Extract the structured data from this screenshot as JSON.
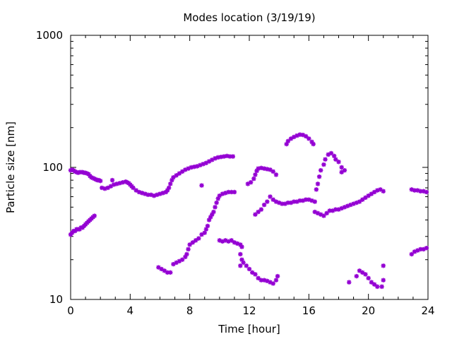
{
  "chart_data": {
    "type": "scatter",
    "title": "Modes location (3/19/19)",
    "xlabel": "Time [hour]",
    "ylabel": "Particle size [nm]",
    "xlim": [
      0,
      24
    ],
    "ylim": [
      10,
      1000
    ],
    "yscale": "log",
    "grid": false,
    "legend": "none",
    "x_ticks": [
      0,
      4,
      8,
      12,
      16,
      20,
      24
    ],
    "x_tick_labels": [
      "0",
      "4",
      "8",
      "12",
      "16",
      "20",
      "24"
    ],
    "y_ticks": [
      10,
      100,
      1000
    ],
    "y_tick_labels": [
      "10",
      "100",
      "1000"
    ],
    "marker": "star",
    "color": "#9400d3",
    "series": [
      {
        "points": [
          [
            0.0,
            95
          ],
          [
            0.1,
            96
          ],
          [
            0.2,
            95
          ],
          [
            0.3,
            93
          ],
          [
            0.4,
            92
          ],
          [
            0.5,
            91
          ],
          [
            0.6,
            92
          ],
          [
            0.7,
            92
          ],
          [
            0.8,
            92
          ],
          [
            0.9,
            91
          ],
          [
            1.0,
            91
          ],
          [
            1.1,
            90
          ],
          [
            1.2,
            89
          ],
          [
            1.3,
            86
          ],
          [
            1.4,
            84
          ],
          [
            1.5,
            83
          ],
          [
            1.6,
            82
          ],
          [
            1.7,
            81
          ],
          [
            1.8,
            80
          ],
          [
            1.9,
            80
          ],
          [
            2.0,
            79
          ],
          [
            2.1,
            70
          ],
          [
            2.3,
            69
          ],
          [
            2.5,
            70
          ],
          [
            2.7,
            72
          ],
          [
            2.9,
            74
          ],
          [
            3.1,
            75
          ],
          [
            3.3,
            76
          ],
          [
            3.5,
            77
          ],
          [
            3.7,
            78
          ],
          [
            3.8,
            77
          ],
          [
            3.9,
            76
          ],
          [
            4.0,
            74
          ],
          [
            4.1,
            72
          ],
          [
            4.2,
            70
          ],
          [
            4.4,
            67
          ],
          [
            4.6,
            65
          ],
          [
            4.8,
            64
          ],
          [
            5.0,
            63
          ],
          [
            5.2,
            62
          ],
          [
            5.4,
            62
          ],
          [
            5.6,
            61
          ],
          [
            5.8,
            62
          ],
          [
            6.0,
            63
          ],
          [
            6.2,
            64
          ],
          [
            6.4,
            65
          ],
          [
            6.5,
            67
          ],
          [
            6.6,
            70
          ],
          [
            6.7,
            75
          ],
          [
            6.8,
            80
          ],
          [
            6.9,
            84
          ],
          [
            7.1,
            87
          ],
          [
            7.3,
            90
          ],
          [
            7.5,
            93
          ],
          [
            7.7,
            96
          ],
          [
            7.9,
            98
          ],
          [
            8.1,
            100
          ],
          [
            8.3,
            101
          ],
          [
            8.5,
            102
          ],
          [
            8.7,
            104
          ],
          [
            8.9,
            106
          ],
          [
            9.1,
            108
          ],
          [
            9.3,
            111
          ],
          [
            9.5,
            114
          ],
          [
            9.7,
            117
          ],
          [
            9.9,
            119
          ],
          [
            10.1,
            120
          ],
          [
            10.3,
            121
          ],
          [
            10.5,
            122
          ],
          [
            10.7,
            121
          ],
          [
            10.9,
            121
          ],
          [
            2.8,
            80
          ],
          [
            11.9,
            75
          ],
          [
            12.1,
            77
          ],
          [
            12.3,
            82
          ],
          [
            12.4,
            88
          ],
          [
            12.5,
            94
          ],
          [
            12.6,
            98
          ],
          [
            12.8,
            99
          ],
          [
            13.0,
            98
          ],
          [
            13.2,
            97
          ],
          [
            13.4,
            96
          ],
          [
            13.6,
            93
          ],
          [
            13.8,
            88
          ]
        ]
      },
      {
        "points": [
          [
            0.0,
            31
          ],
          [
            0.1,
            32
          ],
          [
            0.2,
            33
          ],
          [
            0.3,
            33
          ],
          [
            0.4,
            34
          ],
          [
            0.5,
            34
          ],
          [
            0.6,
            34
          ],
          [
            0.7,
            35
          ],
          [
            0.8,
            35
          ],
          [
            0.9,
            36
          ],
          [
            1.0,
            37
          ],
          [
            1.1,
            38
          ],
          [
            1.2,
            39
          ],
          [
            1.3,
            40
          ],
          [
            1.4,
            41
          ],
          [
            1.5,
            42
          ],
          [
            1.6,
            43
          ],
          [
            5.9,
            17.5
          ],
          [
            6.1,
            17
          ],
          [
            6.3,
            16.5
          ],
          [
            6.5,
            16
          ],
          [
            6.7,
            16
          ],
          [
            6.9,
            18.5
          ],
          [
            7.1,
            19
          ],
          [
            7.3,
            19.5
          ],
          [
            7.5,
            20
          ],
          [
            7.7,
            21
          ],
          [
            7.8,
            22
          ],
          [
            7.9,
            24
          ],
          [
            8.0,
            26
          ],
          [
            8.2,
            27
          ],
          [
            8.4,
            28
          ],
          [
            8.6,
            29
          ],
          [
            8.8,
            31
          ],
          [
            9.0,
            32
          ],
          [
            9.1,
            34
          ],
          [
            9.2,
            36
          ],
          [
            9.3,
            40
          ],
          [
            9.4,
            42
          ],
          [
            9.5,
            44
          ],
          [
            9.6,
            46
          ],
          [
            9.7,
            50
          ],
          [
            9.8,
            54
          ],
          [
            9.9,
            58
          ],
          [
            10.0,
            61
          ],
          [
            10.2,
            63
          ],
          [
            10.4,
            64
          ],
          [
            10.6,
            65
          ],
          [
            10.8,
            65
          ],
          [
            11.0,
            65
          ],
          [
            8.8,
            73
          ],
          [
            10.0,
            28
          ],
          [
            10.2,
            27.5
          ],
          [
            10.4,
            28
          ],
          [
            10.6,
            27.5
          ],
          [
            10.8,
            28
          ],
          [
            11.0,
            27
          ],
          [
            11.2,
            26.5
          ],
          [
            11.4,
            26
          ],
          [
            11.5,
            25
          ],
          [
            11.4,
            22
          ],
          [
            11.5,
            20
          ],
          [
            11.6,
            19
          ],
          [
            11.8,
            18
          ],
          [
            12.0,
            17
          ],
          [
            12.2,
            16
          ],
          [
            12.4,
            15.5
          ],
          [
            12.6,
            14.5
          ],
          [
            12.8,
            14
          ],
          [
            13.0,
            14
          ],
          [
            13.2,
            13.8
          ],
          [
            13.4,
            13.5
          ],
          [
            13.6,
            13.2
          ],
          [
            13.8,
            14
          ],
          [
            13.9,
            15
          ],
          [
            11.4,
            18
          ],
          [
            12.4,
            44
          ],
          [
            12.6,
            46
          ],
          [
            12.8,
            48
          ],
          [
            13.0,
            52
          ],
          [
            13.2,
            55
          ],
          [
            13.4,
            60
          ],
          [
            13.6,
            57
          ],
          [
            13.8,
            55
          ],
          [
            14.0,
            54
          ],
          [
            14.2,
            53
          ],
          [
            14.4,
            53
          ],
          [
            14.6,
            54
          ],
          [
            14.8,
            54
          ],
          [
            15.0,
            55
          ],
          [
            15.2,
            55
          ],
          [
            15.4,
            56
          ],
          [
            15.6,
            56
          ],
          [
            15.8,
            57
          ],
          [
            16.0,
            57
          ],
          [
            16.2,
            56
          ],
          [
            16.4,
            55
          ],
          [
            14.5,
            150
          ],
          [
            14.6,
            158
          ],
          [
            14.8,
            165
          ],
          [
            15.0,
            170
          ],
          [
            15.2,
            174
          ],
          [
            15.4,
            177
          ],
          [
            15.6,
            176
          ],
          [
            15.8,
            172
          ],
          [
            16.0,
            165
          ],
          [
            16.2,
            156
          ],
          [
            16.3,
            150
          ],
          [
            16.4,
            46
          ],
          [
            16.6,
            45
          ],
          [
            16.8,
            44
          ],
          [
            17.0,
            43
          ],
          [
            17.2,
            45
          ],
          [
            17.4,
            47
          ],
          [
            17.6,
            47
          ],
          [
            17.8,
            48
          ],
          [
            18.0,
            48
          ],
          [
            18.2,
            49
          ],
          [
            18.4,
            50
          ],
          [
            18.6,
            51
          ],
          [
            18.8,
            52
          ],
          [
            19.0,
            53
          ],
          [
            19.2,
            54
          ],
          [
            19.4,
            55
          ],
          [
            19.6,
            57
          ],
          [
            19.8,
            59
          ],
          [
            20.0,
            61
          ],
          [
            20.2,
            63
          ],
          [
            20.4,
            65
          ],
          [
            20.6,
            67
          ],
          [
            20.8,
            68
          ],
          [
            21.0,
            66
          ],
          [
            16.5,
            68
          ],
          [
            16.6,
            75
          ],
          [
            16.7,
            85
          ],
          [
            16.8,
            95
          ],
          [
            17.0,
            105
          ],
          [
            17.1,
            115
          ],
          [
            17.3,
            125
          ],
          [
            17.5,
            128
          ],
          [
            17.7,
            122
          ],
          [
            17.8,
            115
          ],
          [
            18.0,
            110
          ],
          [
            18.2,
            100
          ],
          [
            18.4,
            95
          ],
          [
            18.2,
            92
          ],
          [
            18.7,
            13.5
          ],
          [
            19.2,
            15
          ],
          [
            19.4,
            16.5
          ],
          [
            19.6,
            16
          ],
          [
            19.8,
            15.5
          ],
          [
            20.0,
            14.5
          ],
          [
            20.2,
            13.5
          ],
          [
            20.4,
            13
          ],
          [
            20.6,
            12.5
          ],
          [
            20.9,
            12.5
          ],
          [
            21.0,
            14
          ],
          [
            21.0,
            18
          ],
          [
            22.9,
            22
          ],
          [
            23.1,
            23
          ],
          [
            23.3,
            23.5
          ],
          [
            23.5,
            24
          ],
          [
            23.7,
            24
          ],
          [
            23.9,
            24.5
          ],
          [
            22.9,
            68
          ],
          [
            23.1,
            67
          ],
          [
            23.3,
            67
          ],
          [
            23.5,
            66
          ],
          [
            23.7,
            66
          ],
          [
            23.9,
            65
          ]
        ]
      }
    ]
  }
}
